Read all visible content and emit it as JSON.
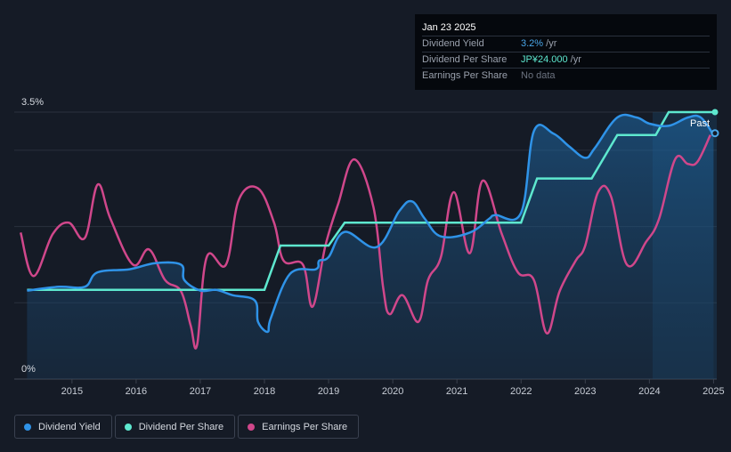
{
  "tooltip": {
    "date": "Jan 23 2025",
    "rows": [
      {
        "label": "Dividend Yield",
        "value": "3.2%",
        "unit": " /yr",
        "color": "#4aa6e8"
      },
      {
        "label": "Dividend Per Share",
        "value": "JP¥24.000",
        "unit": " /yr",
        "color": "#5ee8cf"
      },
      {
        "label": "Earnings Per Share",
        "value": "No data",
        "unit": "",
        "color": "#6c7380"
      }
    ]
  },
  "legend": [
    {
      "label": "Dividend Yield",
      "color": "#2f93e8"
    },
    {
      "label": "Dividend Per Share",
      "color": "#5ee8cf"
    },
    {
      "label": "Earnings Per Share",
      "color": "#d0478b"
    }
  ],
  "chart_data": {
    "type": "line",
    "ylabel_top": "3.5%",
    "ylabel_bottom": "0%",
    "ylim": [
      0,
      3.5
    ],
    "xlim": [
      2014.1,
      2025.05
    ],
    "x_ticks": [
      2015,
      2016,
      2017,
      2018,
      2019,
      2020,
      2021,
      2022,
      2023,
      2024,
      2025
    ],
    "x_tick_labels": [
      "2015",
      "2016",
      "2017",
      "2018",
      "2019",
      "2020",
      "2021",
      "2022",
      "2023",
      "2024",
      "2025"
    ],
    "past_label": "Past",
    "forecast_start": 2024.05,
    "series": [
      {
        "name": "Dividend Yield",
        "color": "#2f93e8",
        "points": [
          [
            2014.3,
            1.16
          ],
          [
            2014.8,
            1.21
          ],
          [
            2015.2,
            1.21
          ],
          [
            2015.4,
            1.4
          ],
          [
            2015.9,
            1.44
          ],
          [
            2016.3,
            1.52
          ],
          [
            2016.7,
            1.5
          ],
          [
            2016.75,
            1.3
          ],
          [
            2017.0,
            1.16
          ],
          [
            2017.25,
            1.17
          ],
          [
            2017.5,
            1.1
          ],
          [
            2017.85,
            1.03
          ],
          [
            2017.9,
            0.75
          ],
          [
            2018.05,
            0.62
          ],
          [
            2018.1,
            0.8
          ],
          [
            2018.4,
            1.38
          ],
          [
            2018.8,
            1.44
          ],
          [
            2018.85,
            1.55
          ],
          [
            2019.0,
            1.6
          ],
          [
            2019.25,
            1.93
          ],
          [
            2019.75,
            1.73
          ],
          [
            2020.1,
            2.2
          ],
          [
            2020.3,
            2.33
          ],
          [
            2020.5,
            2.1
          ],
          [
            2020.75,
            1.87
          ],
          [
            2021.2,
            1.92
          ],
          [
            2021.5,
            2.1
          ],
          [
            2021.6,
            2.15
          ],
          [
            2022.0,
            2.18
          ],
          [
            2022.2,
            3.25
          ],
          [
            2022.5,
            3.22
          ],
          [
            2022.75,
            3.05
          ],
          [
            2023.0,
            2.9
          ],
          [
            2023.15,
            3.03
          ],
          [
            2023.5,
            3.43
          ],
          [
            2023.8,
            3.43
          ],
          [
            2024.0,
            3.35
          ],
          [
            2024.3,
            3.32
          ],
          [
            2024.6,
            3.43
          ],
          [
            2024.8,
            3.43
          ],
          [
            2025.0,
            3.2
          ]
        ]
      },
      {
        "name": "Dividend Per Share",
        "color": "#5ee8cf",
        "points": [
          [
            2014.3,
            1.17
          ],
          [
            2018.0,
            1.17
          ],
          [
            2018.25,
            1.75
          ],
          [
            2019.0,
            1.75
          ],
          [
            2019.25,
            2.05
          ],
          [
            2022.0,
            2.05
          ],
          [
            2022.25,
            2.63
          ],
          [
            2023.1,
            2.63
          ],
          [
            2023.5,
            3.2
          ],
          [
            2024.1,
            3.2
          ],
          [
            2024.3,
            3.5
          ],
          [
            2025.05,
            3.5
          ]
        ]
      },
      {
        "name": "Earnings Per Share",
        "color": "#d0478b",
        "points": [
          [
            2014.2,
            1.92
          ],
          [
            2014.4,
            1.35
          ],
          [
            2014.7,
            1.9
          ],
          [
            2014.95,
            2.05
          ],
          [
            2015.2,
            1.85
          ],
          [
            2015.4,
            2.55
          ],
          [
            2015.6,
            2.1
          ],
          [
            2015.95,
            1.5
          ],
          [
            2016.2,
            1.7
          ],
          [
            2016.45,
            1.3
          ],
          [
            2016.7,
            1.15
          ],
          [
            2016.85,
            0.7
          ],
          [
            2016.95,
            0.45
          ],
          [
            2017.1,
            1.6
          ],
          [
            2017.4,
            1.5
          ],
          [
            2017.6,
            2.35
          ],
          [
            2017.9,
            2.5
          ],
          [
            2018.15,
            2.05
          ],
          [
            2018.3,
            1.55
          ],
          [
            2018.6,
            1.5
          ],
          [
            2018.75,
            0.95
          ],
          [
            2018.95,
            1.75
          ],
          [
            2019.15,
            2.3
          ],
          [
            2019.4,
            2.88
          ],
          [
            2019.7,
            2.25
          ],
          [
            2019.85,
            1.2
          ],
          [
            2019.95,
            0.85
          ],
          [
            2020.15,
            1.1
          ],
          [
            2020.4,
            0.75
          ],
          [
            2020.55,
            1.3
          ],
          [
            2020.75,
            1.6
          ],
          [
            2020.95,
            2.45
          ],
          [
            2021.2,
            1.65
          ],
          [
            2021.4,
            2.6
          ],
          [
            2021.7,
            1.9
          ],
          [
            2021.95,
            1.4
          ],
          [
            2022.2,
            1.3
          ],
          [
            2022.4,
            0.6
          ],
          [
            2022.6,
            1.15
          ],
          [
            2022.85,
            1.55
          ],
          [
            2023.0,
            1.75
          ],
          [
            2023.2,
            2.45
          ],
          [
            2023.4,
            2.4
          ],
          [
            2023.65,
            1.5
          ],
          [
            2023.95,
            1.8
          ],
          [
            2024.15,
            2.1
          ],
          [
            2024.4,
            2.88
          ],
          [
            2024.6,
            2.82
          ],
          [
            2024.75,
            2.85
          ],
          [
            2024.95,
            3.2
          ]
        ]
      }
    ]
  }
}
